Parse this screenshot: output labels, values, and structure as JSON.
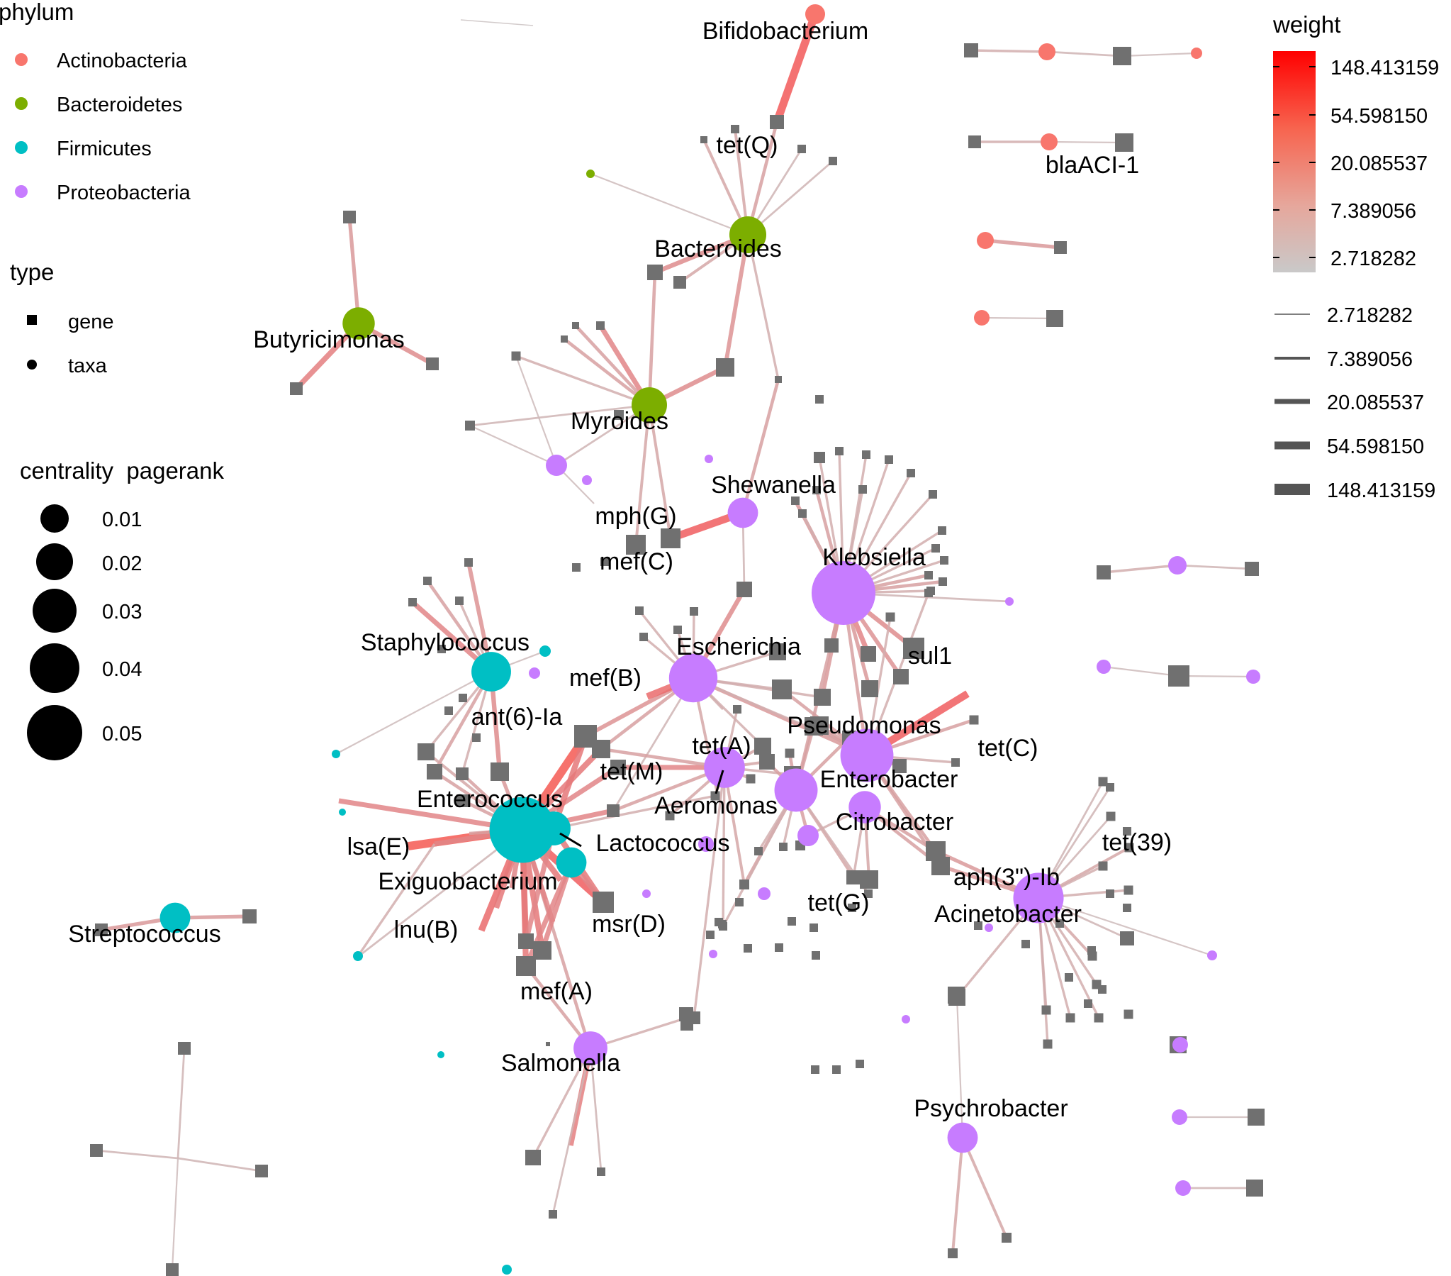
{
  "colors": {
    "Actinobacteria": "#F8766D",
    "Bacteroidetes": "#7CAE00",
    "Firmicutes": "#00BFC4",
    "Proteobacteria": "#C77CFF",
    "gene": "#707070",
    "edge_low": "#C9C9C9",
    "edge_high": "#FF0000"
  },
  "legend": {
    "phylum": {
      "title": "phylum",
      "items": [
        "Actinobacteria",
        "Bacteroidetes",
        "Firmicutes",
        "Proteobacteria"
      ]
    },
    "type": {
      "title": "type",
      "items": [
        "gene",
        "taxa"
      ]
    },
    "centrality": {
      "title": "centrality  pagerank",
      "items": [
        "0.01",
        "0.02",
        "0.03",
        "0.04",
        "0.05"
      ],
      "values": [
        0.01,
        0.02,
        0.03,
        0.04,
        0.05
      ]
    },
    "weight": {
      "title": "weight",
      "ticks": [
        "148.413159",
        "54.598150",
        "20.085537",
        "7.389056",
        "2.718282"
      ]
    },
    "width": {
      "items": [
        "2.718282",
        "7.389056",
        "20.085537",
        "54.598150",
        "148.413159"
      ]
    }
  },
  "network": {
    "taxa": [
      {
        "id": "Bifidobacterium",
        "phylum": "Actinobacteria",
        "pagerank": 0.001,
        "label": "Bifidobacterium"
      },
      {
        "id": "Bacteroides",
        "phylum": "Bacteroidetes",
        "pagerank": 0.009,
        "label": "Bacteroides"
      },
      {
        "id": "Butyricimonas",
        "phylum": "Bacteroidetes",
        "pagerank": 0.006,
        "label": "Butyricimonas"
      },
      {
        "id": "Myroides",
        "phylum": "Bacteroidetes",
        "pagerank": 0.008,
        "label": "Myroides"
      },
      {
        "id": "Shewanella",
        "phylum": "Proteobacteria",
        "pagerank": 0.005,
        "label": "Shewanella"
      },
      {
        "id": "Klebsiella",
        "phylum": "Proteobacteria",
        "pagerank": 0.038,
        "label": "Klebsiella"
      },
      {
        "id": "Staphylococcus",
        "phylum": "Firmicutes",
        "pagerank": 0.011,
        "label": "Staphylococcus"
      },
      {
        "id": "Escherichia",
        "phylum": "Proteobacteria",
        "pagerank": 0.019,
        "label": "Escherichia"
      },
      {
        "id": "Pseudomonas",
        "phylum": "Proteobacteria",
        "pagerank": 0.024,
        "label": "Pseudomonas"
      },
      {
        "id": "Aeromonas",
        "phylum": "Proteobacteria",
        "pagerank": 0.012,
        "label": "Aeromonas"
      },
      {
        "id": "Enterobacter",
        "phylum": "Proteobacteria",
        "pagerank": 0.014,
        "label": "Enterobacter"
      },
      {
        "id": "Citrobacter",
        "phylum": "Proteobacteria",
        "pagerank": 0.006,
        "label": "Citrobacter"
      },
      {
        "id": "Enterococcus",
        "phylum": "Firmicutes",
        "pagerank": 0.041,
        "label": "Enterococcus"
      },
      {
        "id": "Lactococcus",
        "phylum": "Firmicutes",
        "pagerank": 0.007,
        "label": "Lactococcus"
      },
      {
        "id": "Exiguobacterium",
        "phylum": "Firmicutes",
        "pagerank": 0.005,
        "label": "Exiguobacterium"
      },
      {
        "id": "Acinetobacter",
        "phylum": "Proteobacteria",
        "pagerank": 0.021,
        "label": "Acinetobacter"
      },
      {
        "id": "Streptococcus",
        "phylum": "Firmicutes",
        "pagerank": 0.005,
        "label": "Streptococcus"
      },
      {
        "id": "Salmonella",
        "phylum": "Proteobacteria",
        "pagerank": 0.007,
        "label": "Salmonella"
      },
      {
        "id": "Psychrobacter",
        "phylum": "Proteobacteria",
        "pagerank": 0.005,
        "label": "Psychrobacter"
      }
    ],
    "gene_labels": [
      "tet(Q)",
      "blaACI-1",
      "mph(G)",
      "mef(C)",
      "sul1",
      "mef(B)",
      "ant(6)-Ia",
      "tet(A)",
      "tet(C)",
      "tet(M)",
      "lsa(E)",
      "lnu(B)",
      "msr(D)",
      "mef(A)",
      "tet(G)",
      "aph(3\")-Ib",
      "tet(39)"
    ]
  }
}
